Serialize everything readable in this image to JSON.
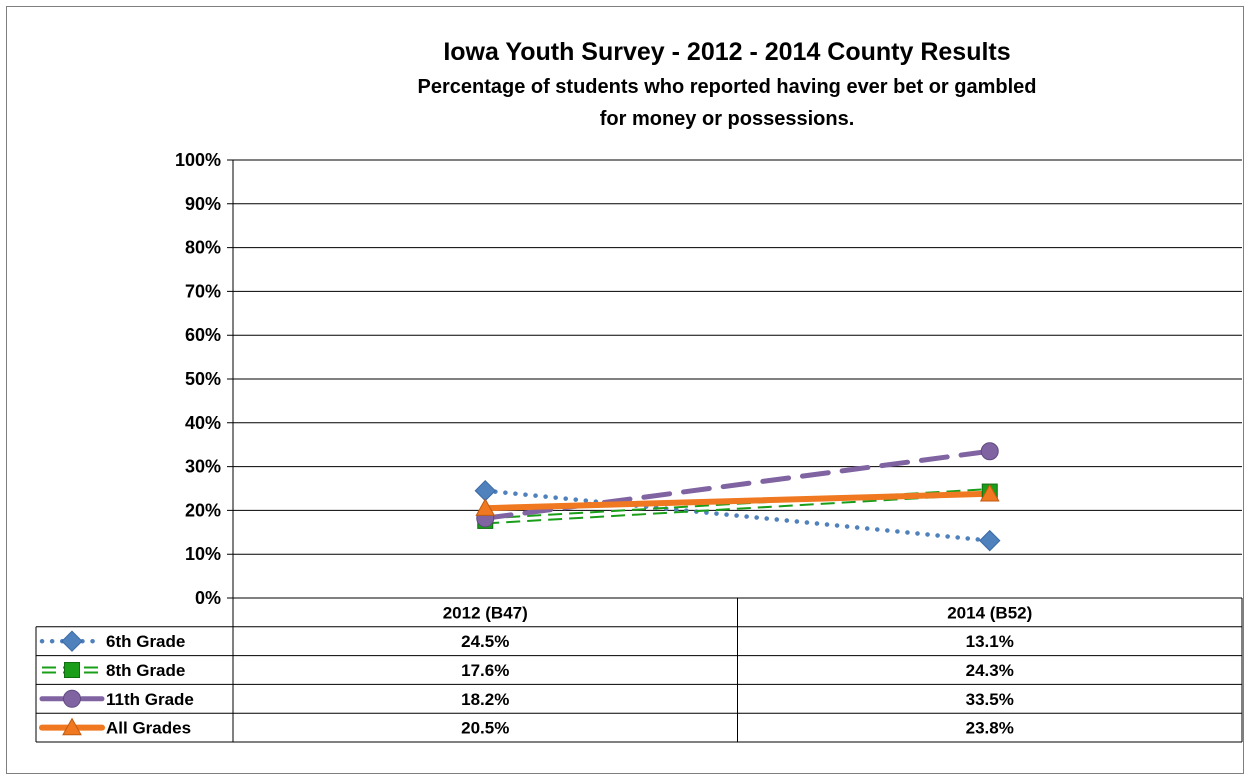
{
  "chart_data": {
    "type": "line",
    "title": "Iowa Youth Survey - 2012 - 2014 County Results",
    "subtitle_lines": [
      "Percentage of students who reported having ever bet or gambled",
      "for money or possessions."
    ],
    "categories": [
      "2012 (B47)",
      "2014 (B52)"
    ],
    "y_ticks": [
      "0%",
      "10%",
      "20%",
      "30%",
      "40%",
      "50%",
      "60%",
      "70%",
      "80%",
      "90%",
      "100%"
    ],
    "ylim": [
      0,
      100
    ],
    "grid": true,
    "legend": "data-table-below",
    "series": [
      {
        "name": "6th Grade",
        "values": [
          24.5,
          13.1
        ],
        "labels": [
          "24.5%",
          "13.1%"
        ],
        "color": "#4f81bd",
        "line": "dotted",
        "marker": "diamond"
      },
      {
        "name": "8th Grade",
        "values": [
          17.6,
          24.3
        ],
        "labels": [
          "17.6%",
          "24.3%"
        ],
        "color": "#1a9e1a",
        "line": "double-dashed",
        "marker": "square"
      },
      {
        "name": "11th Grade",
        "values": [
          18.2,
          33.5
        ],
        "labels": [
          "18.2%",
          "33.5%"
        ],
        "color": "#8064a2",
        "line": "long-dash",
        "marker": "circle"
      },
      {
        "name": "All Grades",
        "values": [
          20.5,
          23.8
        ],
        "labels": [
          "20.5%",
          "23.8%"
        ],
        "color": "#f07820",
        "line": "solid-thick",
        "marker": "triangle"
      }
    ]
  }
}
